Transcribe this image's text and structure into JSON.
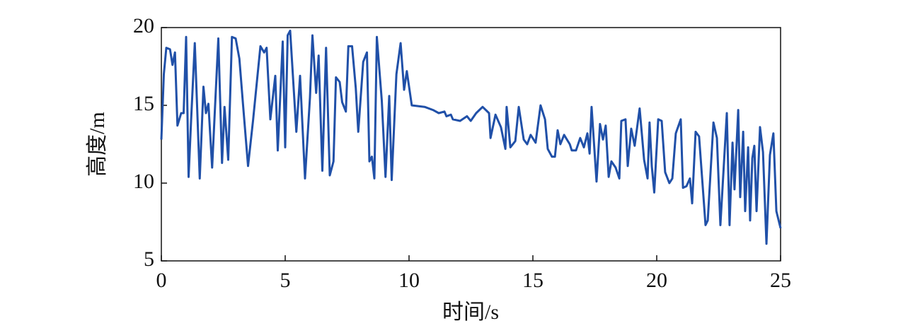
{
  "chart_data": {
    "type": "line",
    "xlabel": "时间/s",
    "ylabel": "高度/m",
    "xlim": [
      0,
      25
    ],
    "xticks": [
      0,
      5,
      10,
      15,
      20,
      25
    ],
    "ylim": [
      5,
      20
    ],
    "yticks": [
      5,
      10,
      15,
      20
    ],
    "series": [
      {
        "color": "#2050a8",
        "x": [
          0,
          0.1,
          0.2,
          0.35,
          0.45,
          0.55,
          0.65,
          0.8,
          0.9,
          1.0,
          1.1,
          1.2,
          1.35,
          1.55,
          1.7,
          1.8,
          1.9,
          2.05,
          2.3,
          2.45,
          2.55,
          2.7,
          2.85,
          3.0,
          3.15,
          3.3,
          3.5,
          3.7,
          4.0,
          4.15,
          4.25,
          4.4,
          4.6,
          4.7,
          4.9,
          5.0,
          5.1,
          5.2,
          5.35,
          5.45,
          5.6,
          5.8,
          6.0,
          6.1,
          6.25,
          6.35,
          6.5,
          6.65,
          6.8,
          6.95,
          7.05,
          7.2,
          7.3,
          7.45,
          7.55,
          7.7,
          7.85,
          7.95,
          8.15,
          8.3,
          8.4,
          8.5,
          8.6,
          8.7,
          8.9,
          9.05,
          9.2,
          9.3,
          9.49,
          9.66,
          9.8,
          9.91,
          10.11,
          10.63,
          10.97,
          11.2,
          11.43,
          11.51,
          11.69,
          11.77,
          12.06,
          12.34,
          12.49,
          12.71,
          12.97,
          13.23,
          13.29,
          13.49,
          13.71,
          13.89,
          13.94,
          14.09,
          14.29,
          14.43,
          14.63,
          14.77,
          14.91,
          15.11,
          15.31,
          15.49,
          15.6,
          15.77,
          15.89,
          16.0,
          16.11,
          16.26,
          16.49,
          16.57,
          16.74,
          16.91,
          17.06,
          17.2,
          17.29,
          17.37,
          17.57,
          17.71,
          17.83,
          17.94,
          18.06,
          18.17,
          18.34,
          18.49,
          18.57,
          18.74,
          18.83,
          18.97,
          19.11,
          19.31,
          19.49,
          19.63,
          19.71,
          19.8,
          19.9,
          20.06,
          20.2,
          20.34,
          20.51,
          20.63,
          20.77,
          20.97,
          21.06,
          21.2,
          21.34,
          21.43,
          21.57,
          21.71,
          21.97,
          22.06,
          22.29,
          22.43,
          22.57,
          22.83,
          22.94,
          23.06,
          23.14,
          23.29,
          23.37,
          23.49,
          23.57,
          23.69,
          23.77,
          23.86,
          23.94,
          24.03,
          24.17,
          24.29,
          24.43,
          24.57,
          24.71,
          24.83,
          25.0
        ],
        "values": [
          12.8,
          17,
          18.7,
          18.6,
          17.6,
          18.4,
          13.7,
          14.5,
          14.5,
          19.4,
          10.4,
          14,
          19,
          10.3,
          16.2,
          14.5,
          15.1,
          11,
          19.3,
          11.3,
          14.9,
          11.5,
          19.4,
          19.3,
          18,
          15,
          11.1,
          14,
          18.8,
          18.4,
          18.7,
          14.1,
          16.9,
          12.1,
          19.1,
          12.3,
          19.5,
          19.8,
          15.9,
          13.3,
          16.9,
          10.3,
          15.5,
          19.5,
          15.8,
          18.2,
          10.8,
          18.7,
          10.5,
          11.4,
          16.8,
          16.5,
          15.2,
          14.6,
          18.8,
          18.8,
          16.1,
          13.3,
          17.8,
          18.4,
          11.4,
          11.7,
          10.3,
          19.4,
          15.3,
          10.4,
          15.6,
          10.2,
          17,
          19,
          16,
          17.2,
          15,
          14.9,
          14.7,
          14.5,
          14.6,
          14.3,
          14.4,
          14.1,
          14,
          14.3,
          14,
          14.5,
          14.9,
          14.5,
          12.9,
          14.4,
          13.6,
          12.2,
          14.9,
          12.3,
          12.7,
          14.9,
          12.8,
          12.5,
          13.1,
          12.6,
          15,
          14.1,
          12.2,
          11.7,
          11.7,
          13.4,
          12.5,
          13.1,
          12.5,
          12.1,
          12.1,
          12.9,
          12.3,
          13.2,
          11.9,
          14.9,
          10.1,
          13.8,
          12.8,
          13.7,
          10.4,
          11.4,
          11,
          10.3,
          14,
          14.1,
          11.1,
          13.5,
          12.4,
          14.8,
          11.5,
          10.3,
          13.9,
          11.1,
          9.4,
          14.1,
          14,
          10.7,
          10,
          10.3,
          13.2,
          14.1,
          9.7,
          9.8,
          10.3,
          8.7,
          13.3,
          13,
          7.3,
          7.6,
          13.9,
          12.9,
          7.3,
          14.5,
          7.3,
          12.6,
          9.6,
          14.7,
          9.1,
          13.3,
          8.2,
          12.3,
          7.6,
          11.6,
          12.4,
          8.2,
          13.6,
          12,
          6.1,
          11.8,
          13.2,
          8.2,
          7.1
        ]
      }
    ]
  }
}
